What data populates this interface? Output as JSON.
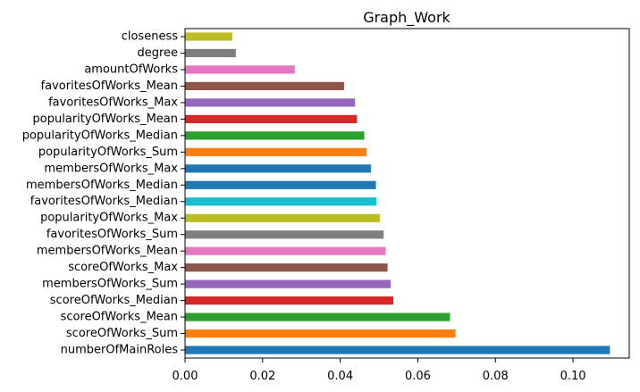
{
  "chart_data": {
    "type": "bar",
    "orientation": "horizontal",
    "title": "Graph_Work",
    "xlabel": "",
    "ylabel": "",
    "xlim": [
      0,
      0.1145
    ],
    "x_ticks": [
      0.0,
      0.02,
      0.04,
      0.06,
      0.08,
      0.1
    ],
    "x_tick_labels": [
      "0.00",
      "0.02",
      "0.04",
      "0.06",
      "0.08",
      "0.10"
    ],
    "grid": false,
    "legend": "none",
    "categories": [
      "numberOfMainRoles",
      "scoreOfWorks_Sum",
      "scoreOfWorks_Mean",
      "scoreOfWorks_Median",
      "membersOfWorks_Sum",
      "scoreOfWorks_Max",
      "membersOfWorks_Mean",
      "favoritesOfWorks_Sum",
      "popularityOfWorks_Max",
      "favoritesOfWorks_Median",
      "membersOfWorks_Median",
      "membersOfWorks_Max",
      "popularityOfWorks_Sum",
      "popularityOfWorks_Median",
      "popularityOfWorks_Mean",
      "favoritesOfWorks_Max",
      "favoritesOfWorks_Mean",
      "amountOfWorks",
      "degree",
      "closeness"
    ],
    "values": [
      0.1095,
      0.0697,
      0.0683,
      0.0537,
      0.053,
      0.0522,
      0.0517,
      0.0512,
      0.0502,
      0.0493,
      0.0492,
      0.0479,
      0.0468,
      0.0462,
      0.0443,
      0.0438,
      0.041,
      0.0283,
      0.0131,
      0.0122
    ],
    "colors": [
      "#1f77b4",
      "#ff7f0e",
      "#2ca02c",
      "#d62728",
      "#9467bd",
      "#8c564b",
      "#e377c2",
      "#7f7f7f",
      "#bcbd22",
      "#17becf",
      "#1f77b4",
      "#1f77b4",
      "#ff7f0e",
      "#2ca02c",
      "#d62728",
      "#9467bd",
      "#8c564b",
      "#e377c2",
      "#7f7f7f",
      "#bcbd22"
    ]
  }
}
